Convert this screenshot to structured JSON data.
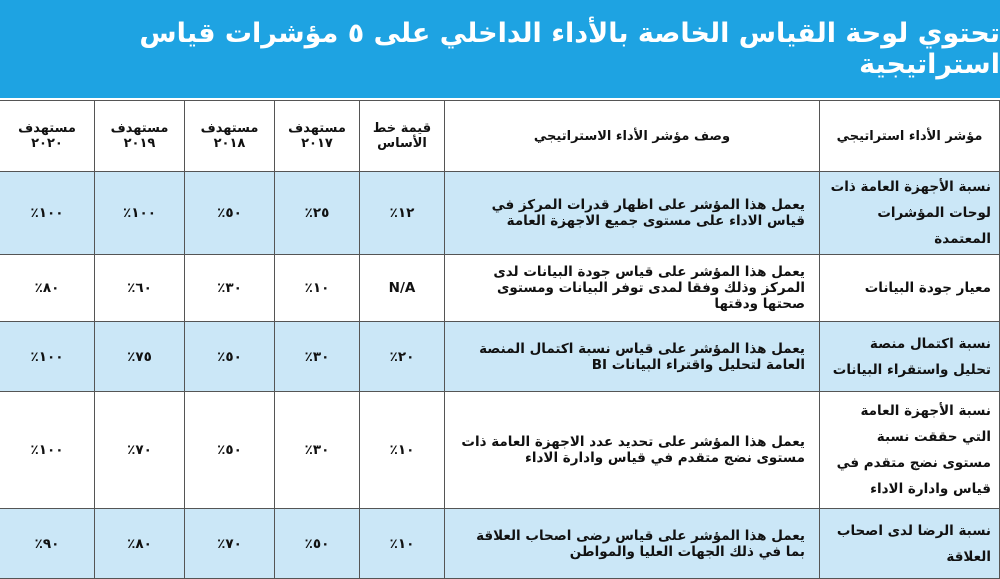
{
  "header": {
    "title": "تحتوي لوحة القياس الخاصة بالأداء الداخلي على ٥ مؤشرات قياس استراتيجية"
  },
  "table": {
    "columns": [
      "مؤشر الأداء استراتيجي",
      "وصف مؤشر الأداء الاستراتيجي",
      "قيمة خط الأساس",
      "مستهدف ٢٠١٧",
      "مستهدف ٢٠١٨",
      "مستهدف ٢٠١٩",
      "مستهدف ٢٠٢٠"
    ],
    "rows": [
      [
        "نسبة الأجهزة العامة ذات لوحات المؤشرات المعتمدة",
        "يعمل هذا المؤشر على اظهار قدرات المركز في قياس الاداء على مستوى جميع الاجهزة العامة",
        "١٢٪",
        "٢٥٪",
        "٥٠٪",
        "١٠٠٪",
        "١٠٠٪"
      ],
      [
        "معيار جودة البيانات",
        "يعمل هذا المؤشر على قياس جودة البيانات لدى المركز وذلك وفقا لمدى توفر البيانات ومستوى صحتها ودقتها",
        "N/A",
        "١٠٪",
        "٣٠٪",
        "٦٠٪",
        "٨٠٪"
      ],
      [
        "نسبة اكتمال منصة تحليل واستقراء البيانات",
        "يعمل هذا المؤشر على قياس نسبة اكتمال المنصة العامة لتحليل واقتراء البيانات BI",
        "٢٠٪",
        "٣٠٪",
        "٥٠٪",
        "٧٥٪",
        "١٠٠٪"
      ],
      [
        "نسبة الأجهزة العامة التي حققت نسبة مستوى نضج متقدم في قياس وادارة الاداء",
        "يعمل هذا المؤشر على تحديد عدد الاجهزة العامة ذات مستوى نضج متقدم في قياس وادارة الاداء",
        "١٠٪",
        "٣٠٪",
        "٥٠٪",
        "٧٠٪",
        "١٠٠٪"
      ],
      [
        "نسبة الرضا لدى اصحاب العلاقة",
        "يعمل هذا المؤشر على قياس رضى اصحاب العلاقة بما في ذلك الجهات العليا والمواطن",
        "١٠٪",
        "٥٠٪",
        "٧٠٪",
        "٨٠٪",
        "٩٠٪"
      ]
    ]
  }
}
